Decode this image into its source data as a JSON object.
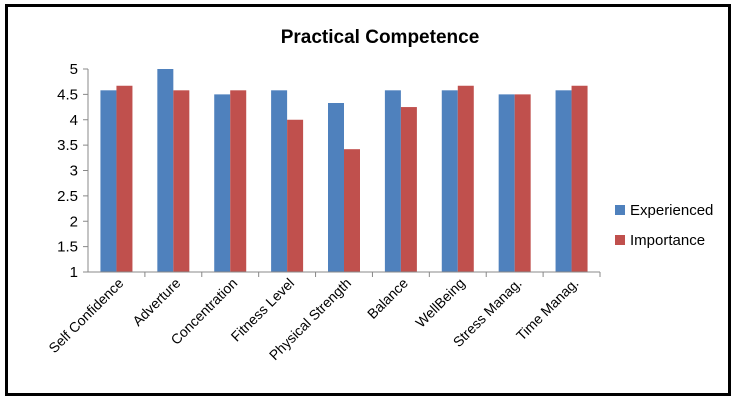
{
  "chart_data": {
    "type": "bar",
    "title": "Practical Competence",
    "xlabel": "",
    "ylabel": "",
    "ylim": [
      1,
      5
    ],
    "yticks": [
      "1",
      "1.5",
      "2",
      "2.5",
      "3",
      "3.5",
      "4",
      "4.5",
      "5"
    ],
    "grid": false,
    "legend_position": "right",
    "categories": [
      "Self Confidence",
      "Adverture",
      "Concentration",
      "Fitness Level",
      "Physical Strength",
      "Balance",
      "WellBeing",
      "Stress Manag.",
      "Time Manag."
    ],
    "series": [
      {
        "name": "Experienced",
        "color": "#4F81BD",
        "values": [
          4.58,
          5.0,
          4.5,
          4.58,
          4.33,
          4.58,
          4.58,
          4.5,
          4.58
        ]
      },
      {
        "name": "Importance",
        "color": "#C0504D",
        "values": [
          4.67,
          4.58,
          4.58,
          4.0,
          3.42,
          4.25,
          4.67,
          4.5,
          4.67
        ]
      }
    ]
  }
}
